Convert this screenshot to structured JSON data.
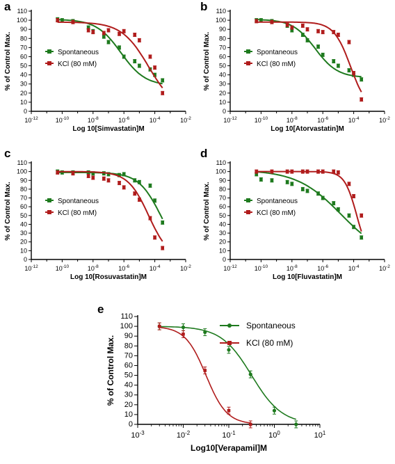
{
  "colors": {
    "spontaneous": "#1e7a1e",
    "kcl": "#b01c1c",
    "axis": "#000000"
  },
  "chart_data": [
    {
      "panel": "a",
      "type": "scatter",
      "xlabel": "Log 10[Simvastatin]M",
      "ylabel": "% of Control Max.",
      "xscale": "log",
      "xlim": [
        1e-12,
        0.01
      ],
      "xticks": [
        -12,
        -10,
        -8,
        -6,
        -4,
        -2
      ],
      "ylim": [
        0,
        110
      ],
      "yticks": [
        0,
        10,
        20,
        30,
        40,
        50,
        60,
        70,
        80,
        90,
        100,
        110
      ],
      "legend_position": "left-middle",
      "series": [
        {
          "name": "Spontaneous",
          "color": "#1e7a1e",
          "fit": {
            "top": 101,
            "bottom": 28,
            "logEC50": -6.2,
            "hill": 0.55
          },
          "log_x": [
            -10.3,
            -10,
            -9.3,
            -8.3,
            -8,
            -7.3,
            -7,
            -6.3,
            -6,
            -5.3,
            -5,
            -4.3,
            -4,
            -3.5
          ],
          "y": [
            101,
            100,
            99,
            92,
            88,
            82,
            76,
            70,
            60,
            55,
            50,
            46,
            40,
            34
          ]
        },
        {
          "name": "KCl (80 mM)",
          "color": "#b01c1c",
          "fit": {
            "top": 98,
            "bottom": 0,
            "logEC50": -4.4,
            "hill": 0.5
          },
          "log_x": [
            -10.3,
            -9.3,
            -8.3,
            -8,
            -7.3,
            -7,
            -6.3,
            -6,
            -5.3,
            -5,
            -4.3,
            -4,
            -3.5
          ],
          "y": [
            100,
            98,
            89,
            87,
            86,
            89,
            85,
            88,
            84,
            78,
            60,
            48,
            20
          ]
        }
      ]
    },
    {
      "panel": "b",
      "type": "scatter",
      "xlabel": "Log 10[Atorvastatin]M",
      "ylabel": "% of Control Max.",
      "xscale": "log",
      "xlim": [
        1e-12,
        0.01
      ],
      "xticks": [
        -12,
        -10,
        -8,
        -6,
        -4,
        -2
      ],
      "ylim": [
        0,
        110
      ],
      "yticks": [
        0,
        10,
        20,
        30,
        40,
        50,
        60,
        70,
        80,
        90,
        100,
        110
      ],
      "legend_position": "left-middle",
      "series": [
        {
          "name": "Spontaneous",
          "color": "#1e7a1e",
          "fit": {
            "top": 101,
            "bottom": 37,
            "logEC50": -6.5,
            "hill": 0.6
          },
          "log_x": [
            -10.3,
            -10,
            -9.3,
            -8.3,
            -8,
            -7.3,
            -7,
            -6.3,
            -6,
            -5.3,
            -5,
            -4.3,
            -4,
            -3.5
          ],
          "y": [
            100,
            100,
            99,
            94,
            89,
            84,
            78,
            71,
            62,
            55,
            50,
            45,
            40,
            35
          ]
        },
        {
          "name": "KCl (80 mM)",
          "color": "#b01c1c",
          "fit": {
            "top": 98,
            "bottom": 0,
            "logEC50": -4.2,
            "hill": 0.8
          },
          "log_x": [
            -10.3,
            -9.3,
            -8.3,
            -8,
            -7.3,
            -7,
            -6.3,
            -6,
            -5.3,
            -5,
            -4.3,
            -4,
            -3.5
          ],
          "y": [
            99,
            98,
            95,
            92,
            94,
            90,
            88,
            87,
            87,
            84,
            76,
            42,
            13
          ]
        }
      ]
    },
    {
      "panel": "c",
      "type": "scatter",
      "xlabel": "Log 10[Rosuvastatin]M",
      "ylabel": "% of Control Max.",
      "xscale": "log",
      "xlim": [
        1e-12,
        0.01
      ],
      "xticks": [
        -12,
        -10,
        -8,
        -6,
        -4,
        -2
      ],
      "ylim": [
        0,
        110
      ],
      "yticks": [
        0,
        10,
        20,
        30,
        40,
        50,
        60,
        70,
        80,
        90,
        100,
        110
      ],
      "legend_position": "left-middle",
      "series": [
        {
          "name": "Spontaneous",
          "color": "#1e7a1e",
          "fit": {
            "top": 99,
            "bottom": 0,
            "logEC50": -3.6,
            "hill": 0.6
          },
          "log_x": [
            -10.3,
            -10,
            -9.3,
            -8.3,
            -8,
            -7.3,
            -7,
            -6.3,
            -6,
            -5.3,
            -5,
            -4.3,
            -4,
            -3.5
          ],
          "y": [
            100,
            99,
            99,
            99,
            98,
            98,
            97,
            96,
            97,
            90,
            88,
            84,
            67,
            42
          ]
        },
        {
          "name": "KCl (80 mM)",
          "color": "#b01c1c",
          "fit": {
            "top": 100,
            "bottom": 0,
            "logEC50": -4.4,
            "hill": 0.65
          },
          "log_x": [
            -10.3,
            -9.3,
            -8.3,
            -8,
            -7.3,
            -7,
            -6.3,
            -6,
            -5.3,
            -5,
            -4.3,
            -4,
            -3.5
          ],
          "y": [
            99,
            98,
            95,
            93,
            92,
            90,
            87,
            82,
            75,
            68,
            47,
            25,
            13
          ]
        }
      ]
    },
    {
      "panel": "d",
      "type": "scatter",
      "xlabel": "Log 10[Fluvastatin]M",
      "ylabel": "% of Control Max.",
      "xscale": "log",
      "xlim": [
        1e-12,
        0.01
      ],
      "xticks": [
        -12,
        -10,
        -8,
        -6,
        -4,
        -2
      ],
      "ylim": [
        0,
        110
      ],
      "yticks": [
        0,
        10,
        20,
        30,
        40,
        50,
        60,
        70,
        80,
        90,
        100,
        110
      ],
      "legend_position": "left-middle",
      "series": [
        {
          "name": "Spontaneous",
          "color": "#1e7a1e",
          "fit": {
            "top": 102,
            "bottom": 0,
            "logEC50": -4.8,
            "hill": 0.3
          },
          "log_x": [
            -10.3,
            -10,
            -9.3,
            -8.3,
            -8,
            -7.3,
            -7,
            -6.3,
            -6,
            -5.3,
            -5,
            -4.3,
            -4,
            -3.5
          ],
          "y": [
            97,
            91,
            90,
            88,
            86,
            80,
            78,
            75,
            70,
            64,
            57,
            50,
            37,
            25
          ]
        },
        {
          "name": "KCl (80 mM)",
          "color": "#b01c1c",
          "fit": {
            "top": 100,
            "bottom": 0,
            "logEC50": -3.8,
            "hill": 1.1
          },
          "log_x": [
            -10.3,
            -9.3,
            -8.3,
            -8,
            -7.3,
            -7,
            -6.3,
            -6,
            -5.3,
            -5,
            -4.3,
            -4,
            -3.5
          ],
          "y": [
            100,
            100,
            100,
            100,
            100,
            100,
            100,
            100,
            100,
            99,
            86,
            72,
            50
          ]
        }
      ]
    },
    {
      "panel": "e",
      "type": "line",
      "xlabel": "Log10[Verapamil]M",
      "ylabel": "% of Control Max.",
      "xscale": "log",
      "xlim": [
        0.001,
        10.0
      ],
      "xticks": [
        -3,
        -2,
        -1,
        0,
        1
      ],
      "ylim": [
        0,
        110
      ],
      "yticks": [
        0,
        10,
        20,
        30,
        40,
        50,
        60,
        70,
        80,
        90,
        100,
        110
      ],
      "legend_position": "top-right",
      "series": [
        {
          "name": "Spontaneous",
          "color": "#1e7a1e",
          "fit": {
            "top": 100,
            "bottom": 0,
            "logEC50": -0.5,
            "hill": 1.3
          },
          "x": [
            0.003,
            0.01,
            0.03,
            0.1,
            0.3,
            1,
            3
          ],
          "y": [
            100,
            99,
            94,
            76,
            51,
            14,
            0
          ]
        },
        {
          "name": "KCl (80 mM)",
          "color": "#b01c1c",
          "fit": {
            "top": 100,
            "bottom": 0,
            "logEC50": -1.5,
            "hill": 1.9
          },
          "x": [
            0.003,
            0.01,
            0.03,
            0.1,
            0.3
          ],
          "y": [
            100,
            92,
            55,
            14,
            0
          ]
        }
      ]
    }
  ]
}
